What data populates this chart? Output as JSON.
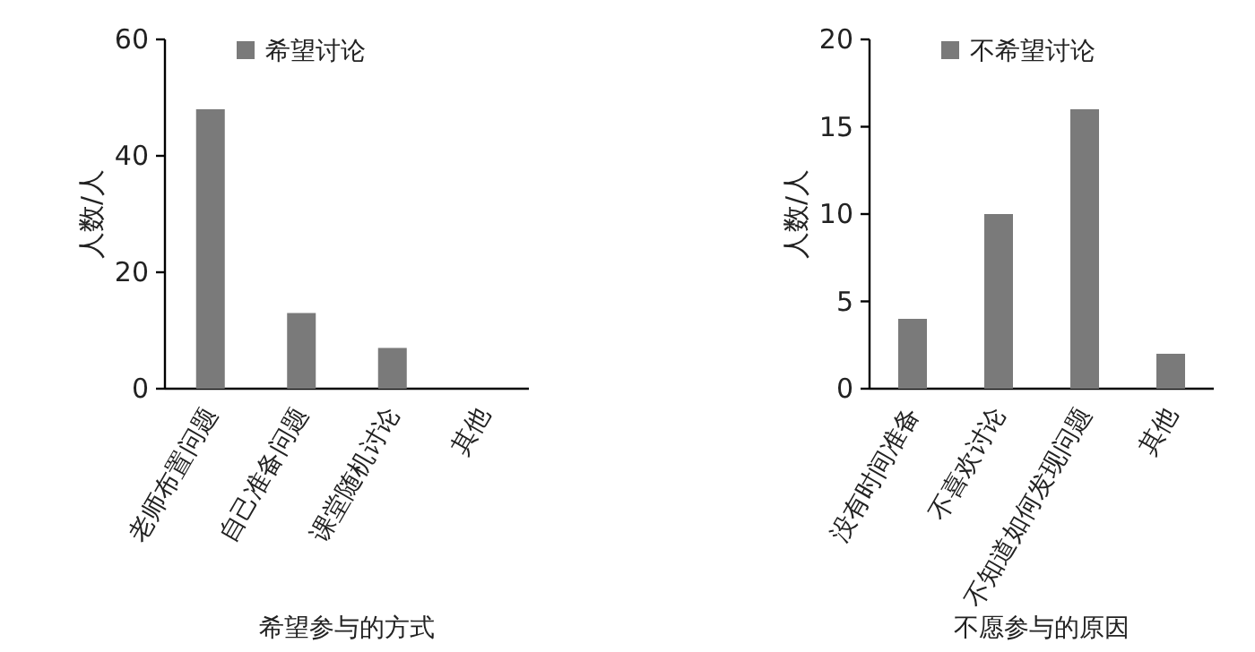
{
  "chart_data": [
    {
      "type": "bar",
      "xlabel": "希望参与的方式",
      "ylabel": "人数/人",
      "categories": [
        "老师布置问题",
        "自己准备问题",
        "课堂随机讨论",
        "其他"
      ],
      "series": [
        {
          "name": "希望讨论",
          "color": "#7a7a7a",
          "values": [
            48,
            13,
            7,
            0
          ]
        }
      ],
      "ylim": [
        0,
        60
      ],
      "yticks": [
        0,
        20,
        40,
        60
      ],
      "legend": "top left"
    },
    {
      "type": "bar",
      "xlabel": "不愿参与的原因",
      "ylabel": "人数/人",
      "categories": [
        "没有时间准备",
        "不喜欢讨论",
        "不知道如何发现问题",
        "其他"
      ],
      "series": [
        {
          "name": "不希望讨论",
          "color": "#7a7a7a",
          "values": [
            4,
            10,
            16,
            2
          ]
        }
      ],
      "ylim": [
        0,
        20
      ],
      "yticks": [
        0,
        5,
        10,
        15,
        20
      ],
      "legend": "top left"
    }
  ]
}
